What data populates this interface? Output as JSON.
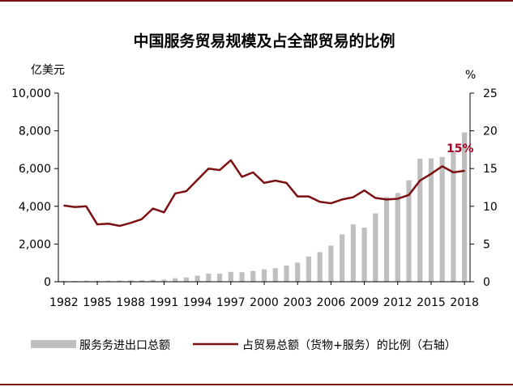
{
  "chart_data": {
    "type": "bar+line",
    "title": "中国服务贸易规模及占全部贸易的比例",
    "left_unit": "亿美元",
    "right_unit": "%",
    "x": [
      1982,
      1983,
      1984,
      1985,
      1986,
      1987,
      1988,
      1989,
      1990,
      1991,
      1992,
      1993,
      1994,
      1995,
      1996,
      1997,
      1998,
      1999,
      2000,
      2001,
      2002,
      2003,
      2004,
      2005,
      2006,
      2007,
      2008,
      2009,
      2010,
      2011,
      2012,
      2013,
      2014,
      2015,
      2016,
      2017,
      2018
    ],
    "x_tick_labels": [
      "1982",
      "1985",
      "1988",
      "1991",
      "1994",
      "1997",
      "2000",
      "2003",
      "2006",
      "2009",
      "2012",
      "2015",
      "2018"
    ],
    "y_left": {
      "min": 0,
      "max": 10000,
      "ticks": [
        "0",
        "2,000",
        "4,000",
        "6,000",
        "8,000",
        "10,000"
      ]
    },
    "y_right": {
      "min": 0,
      "max": 25,
      "ticks": [
        "0",
        "5",
        "10",
        "15",
        "20",
        "25"
      ]
    },
    "series": [
      {
        "name": "服务贸易进出口总额",
        "type": "bar",
        "axis": "left",
        "color": "#bfbfbf",
        "values": [
          44,
          43,
          54,
          52,
          56,
          65,
          80,
          81,
          100,
          109,
          183,
          226,
          322,
          430,
          430,
          522,
          504,
          572,
          660,
          719,
          855,
          1013,
          1337,
          1571,
          1917,
          2509,
          3045,
          2867,
          3624,
          4489,
          4706,
          5376,
          6520,
          6542,
          6616,
          6957,
          7919
        ]
      },
      {
        "name": "占贸易总额（货物+服务）的比例（右轴）",
        "type": "line",
        "axis": "right",
        "color": "#7b1113",
        "values": [
          10.1,
          9.9,
          10.0,
          7.6,
          7.7,
          7.4,
          7.8,
          8.3,
          9.7,
          9.2,
          11.7,
          12.0,
          13.5,
          15.0,
          14.8,
          16.1,
          13.9,
          14.5,
          13.1,
          13.4,
          13.1,
          11.3,
          11.3,
          10.6,
          10.4,
          10.9,
          11.2,
          12.1,
          11.1,
          10.9,
          11.0,
          11.5,
          13.4,
          14.3,
          15.3,
          14.5,
          14.7
        ]
      }
    ],
    "annotation": {
      "text": "15%",
      "color": "#a50021"
    },
    "legend": {
      "position": "bottom",
      "bar_label": "服务务进出口总额",
      "line_label": "占贸易总额（货物+服务）的比例（右轴）"
    }
  }
}
